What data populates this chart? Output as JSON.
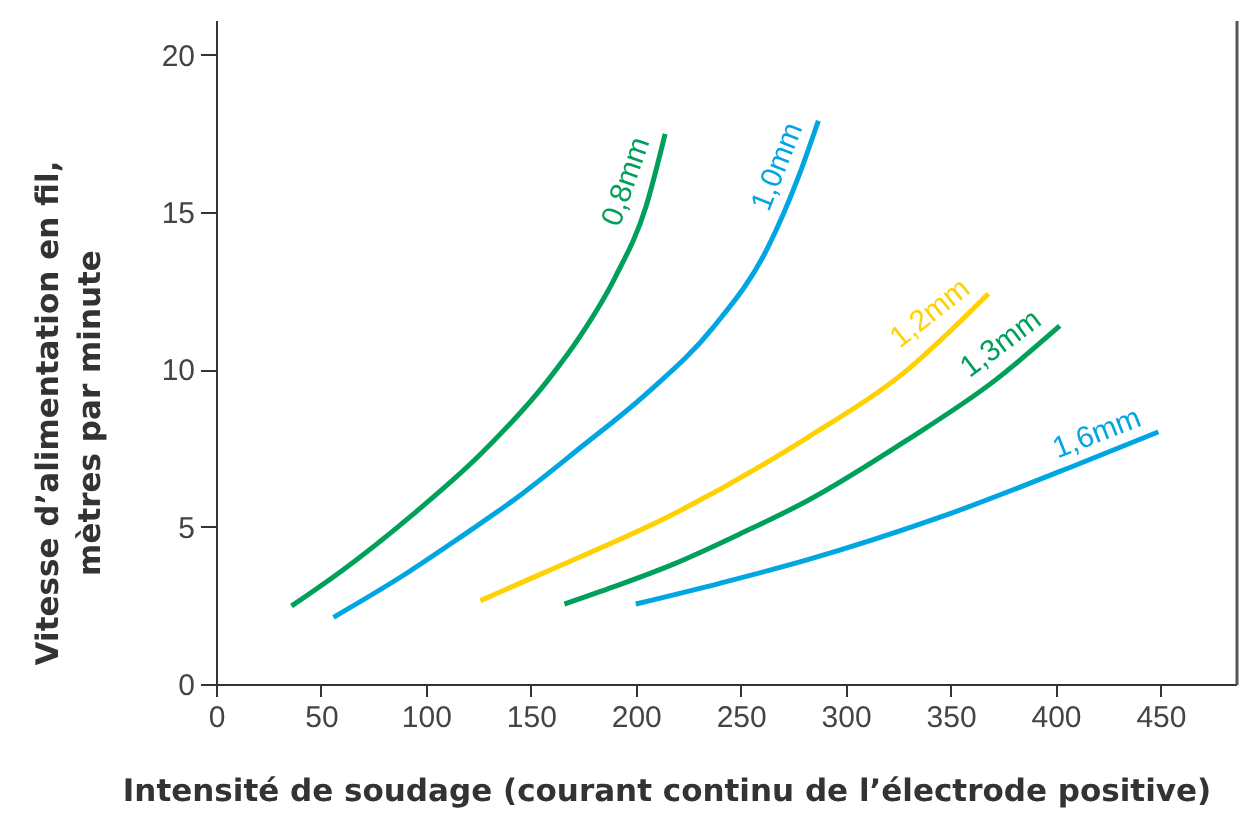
{
  "chart_data": {
    "type": "line",
    "xlabel": "Intensité de soudage (courant continu de l’électrode positive)",
    "ylabel": "Vitesse d’alimentation en fil,\nmètres par minute",
    "xlim": [
      0,
      486
    ],
    "ylim": [
      0,
      21.1
    ],
    "xticks": [
      0,
      50,
      100,
      150,
      200,
      250,
      300,
      350,
      400,
      450
    ],
    "yticks": [
      0,
      5,
      10,
      15,
      20
    ],
    "grid": false,
    "legend": false,
    "marker": "none",
    "line_style": "solid",
    "series": [
      {
        "name": "0,8mm",
        "color": "#00a05a",
        "x": [
          36,
          60,
          94,
          126,
          158,
          174,
          190,
          205,
          214
        ],
        "values": [
          2.48,
          3.6,
          5.4,
          7.3,
          9.64,
          11.1,
          12.9,
          15.2,
          17.48
        ]
      },
      {
        "name": "1,0mm",
        "color": "#00a6e2",
        "x": [
          56,
          88,
          115,
          145,
          174,
          205,
          237,
          263,
          278,
          287
        ],
        "values": [
          2.12,
          3.4,
          4.6,
          6.0,
          7.53,
          9.22,
          11.34,
          13.88,
          16.2,
          17.9
        ]
      },
      {
        "name": "1,2mm",
        "color": "#ffd100",
        "x": [
          126,
          155,
          218,
          282,
          329,
          368
        ],
        "values": [
          2.65,
          3.5,
          5.4,
          7.84,
          9.96,
          12.4
        ]
      },
      {
        "name": "1,3mm",
        "color": "#00a05a",
        "x": [
          166,
          190,
          218,
          250,
          282,
          329,
          371,
          402
        ],
        "values": [
          2.54,
          3.1,
          3.81,
          4.78,
          5.83,
          7.74,
          9.64,
          11.38
        ]
      },
      {
        "name": "1,6mm",
        "color": "#00a6e2",
        "x": [
          200,
          240,
          282,
          345,
          411,
          449
        ],
        "values": [
          2.54,
          3.2,
          3.95,
          5.3,
          6.99,
          8.01
        ]
      }
    ]
  }
}
